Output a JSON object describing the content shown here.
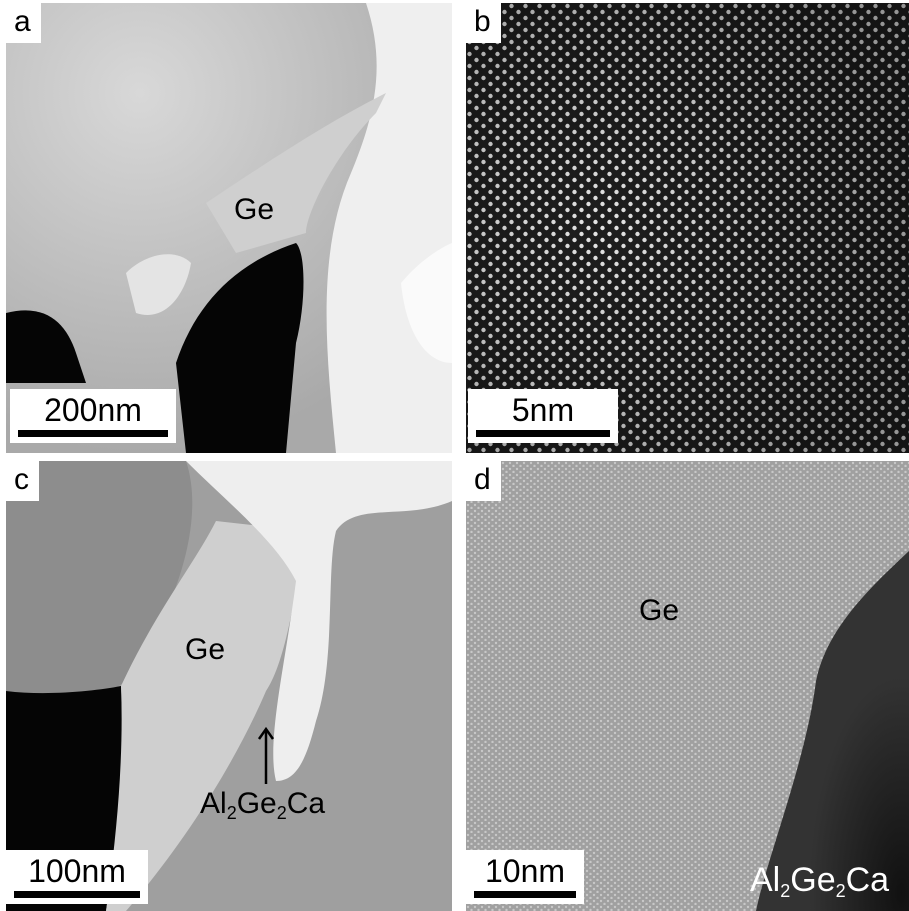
{
  "panels": {
    "a": {
      "label": "a",
      "scale_bar": "200nm",
      "phase_label": "Ge"
    },
    "b": {
      "label": "b",
      "scale_bar": "5nm"
    },
    "c": {
      "label": "c",
      "scale_bar": "100nm",
      "phase_label": "Ge",
      "arrow_label": {
        "prefix": "Al",
        "s1": "2",
        "mid": "Ge",
        "s2": "2",
        "suffix": "Ca"
      }
    },
    "d": {
      "label": "d",
      "scale_bar": "10nm",
      "phase_label": "Ge",
      "corner_label": {
        "prefix": "Al",
        "s1": "2",
        "mid": "Ge",
        "s2": "2",
        "suffix": "Ca"
      }
    }
  }
}
